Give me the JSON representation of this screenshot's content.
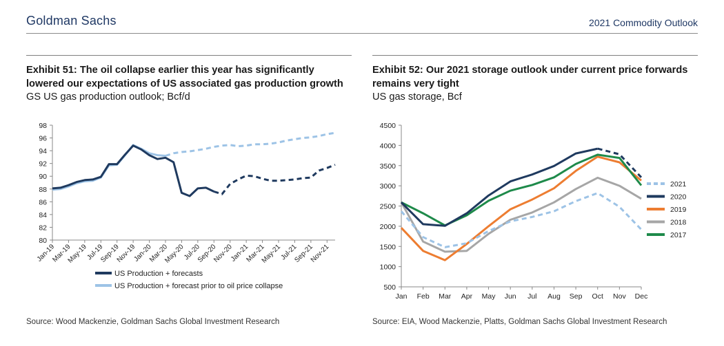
{
  "header": {
    "brand": "Goldman Sachs",
    "report": "2021 Commodity Outlook"
  },
  "exhibit51": {
    "title": "Exhibit 51: The oil collapse earlier this year has significantly lowered our expectations of US associated gas production growth",
    "subtitle": "GS US gas production outlook; Bcf/d",
    "source": "Source: Wood Mackenzie, Goldman Sachs Global Investment Research"
  },
  "exhibit52": {
    "title": "Exhibit 52: Our 2021 storage outlook under current price forwards remains very tight",
    "subtitle": "US gas storage, Bcf",
    "source": "Source: EIA, Wood Mackenzie, Platts, Goldman Sachs Global Investment Research"
  },
  "chart_data": [
    {
      "type": "line",
      "title": "GS US gas production outlook; Bcf/d",
      "ylabel": "Bcf/d",
      "ylim": [
        80,
        98
      ],
      "yticks": [
        80,
        82,
        84,
        86,
        88,
        90,
        92,
        94,
        96,
        98
      ],
      "x_tick_labels": [
        "Jan-19",
        "Mar-19",
        "May-19",
        "Jul-19",
        "Sep-19",
        "Nov-19",
        "Jan-20",
        "Mar-20",
        "May-20",
        "Jul-20",
        "Sep-20",
        "Nov-20",
        "Jan-21",
        "Mar-21",
        "May-21",
        "Jul-21",
        "Sep-21",
        "Nov-21"
      ],
      "legend_position": "bottom",
      "series": [
        {
          "name": "US Production + forecasts",
          "color": "#1f3a5f",
          "style": "solid-then-dashed",
          "solid_until_index": 20,
          "values": [
            88.1,
            88.2,
            88.6,
            89.1,
            89.4,
            89.5,
            89.9,
            91.9,
            91.9,
            93.4,
            94.8,
            94.2,
            93.3,
            92.7,
            92.9,
            92.2,
            87.4,
            86.9,
            88.1,
            88.2,
            87.6,
            87.2,
            88.8,
            89.5,
            90.1,
            90.0,
            89.6,
            89.3,
            89.3,
            89.4,
            89.5,
            89.7,
            89.8,
            90.9,
            91.3,
            91.8
          ]
        },
        {
          "name": "US Production + forecast prior to oil price collapse",
          "color": "#9dc3e6",
          "style": "solid-then-dashed",
          "solid_until_index": 14,
          "values": [
            87.9,
            88.0,
            88.4,
            88.9,
            89.2,
            89.3,
            89.8,
            91.7,
            91.8,
            93.3,
            94.9,
            94.3,
            93.6,
            93.3,
            93.2,
            93.6,
            93.8,
            93.9,
            94.1,
            94.3,
            94.6,
            94.8,
            94.9,
            94.7,
            94.8,
            95.0,
            95.0,
            95.1,
            95.3,
            95.6,
            95.8,
            96.0,
            96.1,
            96.3,
            96.6,
            96.8
          ]
        }
      ]
    },
    {
      "type": "line",
      "title": "US gas storage, Bcf",
      "ylabel": "Bcf",
      "ylim": [
        500,
        4500
      ],
      "yticks": [
        500,
        1000,
        1500,
        2000,
        2500,
        3000,
        3500,
        4000,
        4500
      ],
      "categories": [
        "Jan",
        "Feb",
        "Mar",
        "Apr",
        "May",
        "Jun",
        "Jul",
        "Aug",
        "Sep",
        "Oct",
        "Nov",
        "Dec"
      ],
      "legend_position": "right",
      "series": [
        {
          "name": "2021",
          "color": "#9dc3e6",
          "style": "dashed",
          "values": [
            2370,
            1730,
            1480,
            1580,
            1880,
            2120,
            2230,
            2370,
            2620,
            2820,
            2480,
            1920
          ]
        },
        {
          "name": "2020",
          "color": "#1f3a5f",
          "style": "solid-then-dashed",
          "solid_until_index": 9,
          "values": [
            2590,
            2050,
            2010,
            2320,
            2760,
            3110,
            3280,
            3490,
            3800,
            3920,
            3780,
            3210
          ]
        },
        {
          "name": "2019",
          "color": "#ed7d31",
          "style": "solid",
          "values": [
            1960,
            1390,
            1160,
            1560,
            2000,
            2420,
            2660,
            2940,
            3370,
            3720,
            3580,
            3130
          ]
        },
        {
          "name": "2018",
          "color": "#a6a6a6",
          "style": "solid",
          "values": [
            2590,
            1620,
            1370,
            1390,
            1810,
            2160,
            2340,
            2590,
            2920,
            3200,
            3000,
            2680
          ]
        },
        {
          "name": "2017",
          "color": "#1e8a4a",
          "style": "solid",
          "values": [
            2590,
            2320,
            2020,
            2270,
            2630,
            2880,
            3020,
            3210,
            3540,
            3770,
            3690,
            3010
          ]
        }
      ]
    }
  ]
}
